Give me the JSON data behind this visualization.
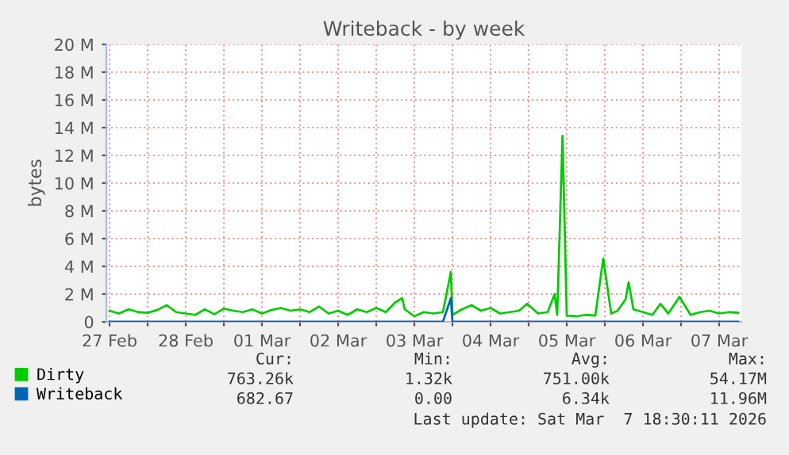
{
  "chart_data": {
    "type": "line",
    "title": "Writeback - by week",
    "ylabel": "bytes",
    "xlim": [
      "2026-02-27T11:00",
      "2026-03-07T19:00"
    ],
    "xticks": [
      {
        "value": "2026-02-27T12:00",
        "label": "27 Feb"
      },
      {
        "value": "2026-02-28T00:00",
        "label": null
      },
      {
        "value": "2026-02-28T12:00",
        "label": "28 Feb"
      },
      {
        "value": "2026-03-01T00:00",
        "label": null
      },
      {
        "value": "2026-03-01T12:00",
        "label": "01 Mar"
      },
      {
        "value": "2026-03-02T00:00",
        "label": null
      },
      {
        "value": "2026-03-02T12:00",
        "label": "02 Mar"
      },
      {
        "value": "2026-03-03T00:00",
        "label": null
      },
      {
        "value": "2026-03-03T12:00",
        "label": "03 Mar"
      },
      {
        "value": "2026-03-04T00:00",
        "label": null
      },
      {
        "value": "2026-03-04T12:00",
        "label": "04 Mar"
      },
      {
        "value": "2026-03-05T00:00",
        "label": null
      },
      {
        "value": "2026-03-05T12:00",
        "label": "05 Mar"
      },
      {
        "value": "2026-03-06T00:00",
        "label": null
      },
      {
        "value": "2026-03-06T12:00",
        "label": "06 Mar"
      },
      {
        "value": "2026-03-07T00:00",
        "label": null
      },
      {
        "value": "2026-03-07T12:00",
        "label": "07 Mar"
      }
    ],
    "ylim": [
      0,
      20000000
    ],
    "yticks": [
      0,
      {
        "value": 2000000,
        "label": "2 M"
      },
      {
        "value": 4000000,
        "label": "4 M"
      },
      {
        "value": 6000000,
        "label": "6 M"
      },
      {
        "value": 8000000,
        "label": "8 M"
      },
      {
        "value": 10000000,
        "label": "10 M"
      },
      {
        "value": 12000000,
        "label": "12 M"
      },
      {
        "value": 14000000,
        "label": "14 M"
      },
      {
        "value": 16000000,
        "label": "16 M"
      },
      {
        "value": 18000000,
        "label": "18 M"
      },
      {
        "value": 20000000,
        "label": "20 M"
      }
    ],
    "grid": true,
    "legend": "bottom",
    "marker": "none",
    "line_style": "solid",
    "series": [
      {
        "name": "Dirty",
        "color": "#00cc00",
        "x": [
          "2026-02-27T12:00",
          "2026-02-27T15:00",
          "2026-02-27T18:00",
          "2026-02-27T21:00",
          "2026-02-28T00:00",
          "2026-02-28T03:00",
          "2026-02-28T06:00",
          "2026-02-28T09:00",
          "2026-02-28T12:00",
          "2026-02-28T15:00",
          "2026-02-28T18:00",
          "2026-02-28T21:00",
          "2026-03-01T00:00",
          "2026-03-01T03:00",
          "2026-03-01T06:00",
          "2026-03-01T09:00",
          "2026-03-01T12:00",
          "2026-03-01T15:00",
          "2026-03-01T18:00",
          "2026-03-01T21:00",
          "2026-03-02T00:00",
          "2026-03-02T03:00",
          "2026-03-02T06:00",
          "2026-03-02T09:00",
          "2026-03-02T12:00",
          "2026-03-02T15:00",
          "2026-03-02T18:00",
          "2026-03-02T21:00",
          "2026-03-03T00:00",
          "2026-03-03T03:00",
          "2026-03-03T06:00",
          "2026-03-03T08:10",
          "2026-03-03T09:00",
          "2026-03-03T12:00",
          "2026-03-03T15:00",
          "2026-03-03T18:00",
          "2026-03-03T21:00",
          "2026-03-03T23:30",
          "2026-03-04T00:00",
          "2026-03-04T03:00",
          "2026-03-04T06:00",
          "2026-03-04T09:00",
          "2026-03-04T12:00",
          "2026-03-04T15:00",
          "2026-03-04T18:00",
          "2026-03-04T21:00",
          "2026-03-04T23:30",
          "2026-03-05T03:00",
          "2026-03-05T06:00",
          "2026-03-05T08:10",
          "2026-03-05T09:00",
          "2026-03-05T10:40",
          "2026-03-05T12:00",
          "2026-03-05T15:00",
          "2026-03-05T18:00",
          "2026-03-05T21:00",
          "2026-03-05T23:30",
          "2026-03-06T02:00",
          "2026-03-06T04:00",
          "2026-03-06T06:30",
          "2026-03-06T07:30",
          "2026-03-06T09:00",
          "2026-03-06T12:00",
          "2026-03-06T15:00",
          "2026-03-06T17:30",
          "2026-03-06T20:00",
          "2026-03-06T23:30",
          "2026-03-07T03:00",
          "2026-03-07T06:00",
          "2026-03-07T09:00",
          "2026-03-07T12:00",
          "2026-03-07T15:00",
          "2026-03-07T18:00"
        ],
        "values": [
          800000,
          600000,
          900000,
          700000,
          650000,
          850000,
          1200000,
          700000,
          600000,
          500000,
          900000,
          550000,
          950000,
          800000,
          700000,
          900000,
          600000,
          850000,
          1000000,
          800000,
          900000,
          700000,
          1100000,
          600000,
          800000,
          500000,
          900000,
          700000,
          1000000,
          700000,
          1400000,
          1700000,
          900000,
          400000,
          700000,
          600000,
          700000,
          3600000,
          500000,
          900000,
          1200000,
          800000,
          1000000,
          600000,
          700000,
          800000,
          1300000,
          600000,
          700000,
          2000000,
          500000,
          13400000,
          450000,
          400000,
          500000,
          450000,
          4570000,
          600000,
          800000,
          1600000,
          2850000,
          900000,
          700000,
          500000,
          1300000,
          600000,
          1800000,
          500000,
          700000,
          800000,
          600000,
          700000,
          650000
        ]
      },
      {
        "name": "Writeback",
        "color": "#0066b3",
        "x": [
          "2026-02-27T12:00",
          "2026-03-03T21:00",
          "2026-03-03T23:30",
          "2026-03-04T00:00",
          "2026-03-07T18:00"
        ],
        "values": [
          0,
          0,
          1700000,
          0,
          0
        ]
      }
    ],
    "annotations": [
      "Cur:",
      "Min:",
      "Avg:",
      "Max:",
      "763.26k",
      "1.32k",
      "751.00k",
      "54.17M",
      "682.67",
      "0.00",
      "6.34k",
      "11.96M",
      "Last update: Sat Mar  7 18:30:11 2026"
    ]
  }
}
